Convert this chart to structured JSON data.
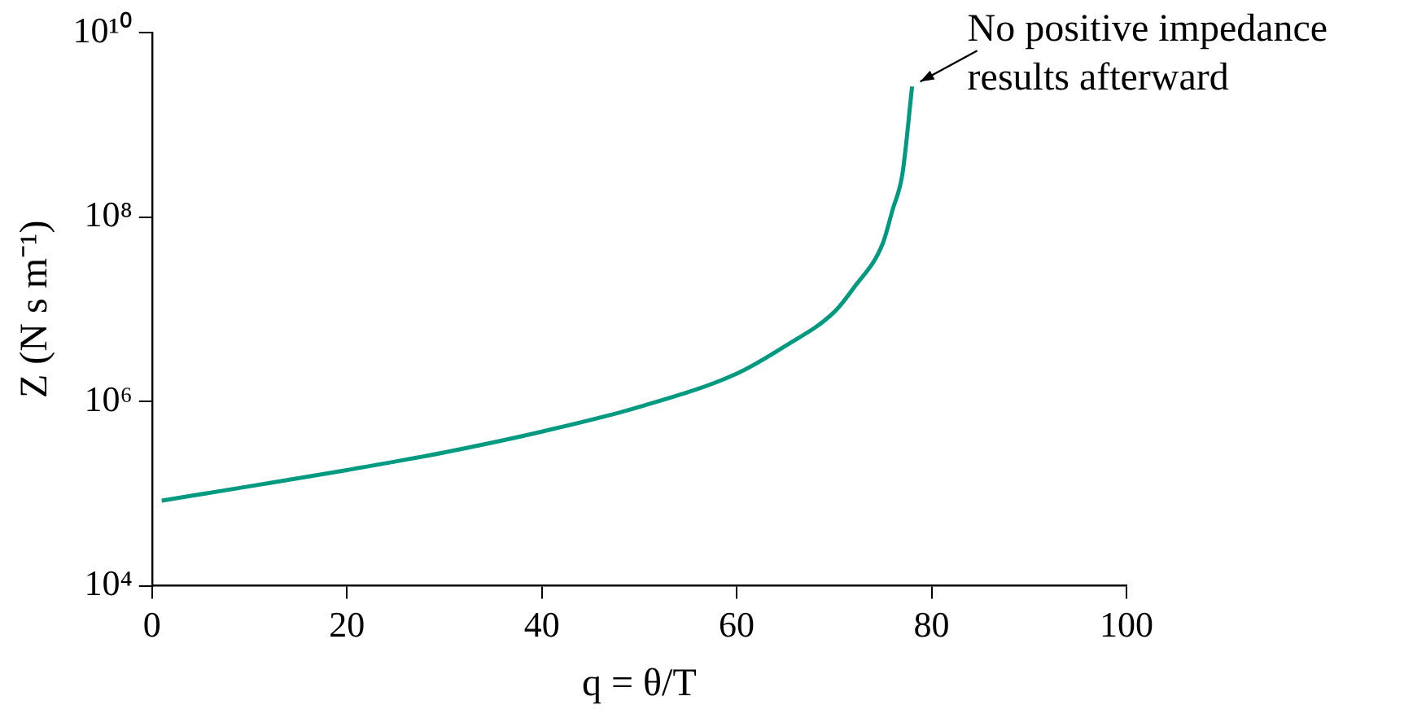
{
  "chart_data": {
    "type": "line",
    "xlabel": "q = θ/T",
    "ylabel": "Z (N s m⁻¹)",
    "x": [
      1,
      10,
      20,
      30,
      40,
      50,
      60,
      65,
      70,
      72,
      75,
      76,
      77,
      78
    ],
    "series": [
      {
        "color": "#009a80",
        "values": [
          84000,
          120000,
          180000,
          280000,
          470000,
          870000,
          2000000,
          4000000,
          9300000,
          17000000,
          52000000,
          120000000,
          290000000,
          2600000000
        ]
      }
    ],
    "xlim": [
      0,
      100
    ],
    "xticks": [
      0,
      20,
      40,
      60,
      80,
      100
    ],
    "ylim": [
      10000,
      10000000000
    ],
    "yticks": [
      {
        "value": 10000,
        "label": "10⁴"
      },
      {
        "value": 1000000,
        "label": "10⁶"
      },
      {
        "value": 100000000,
        "label": "10⁸"
      },
      {
        "value": 10000000000,
        "label": "10¹⁰"
      }
    ],
    "log": "y",
    "grid": false,
    "legend": false,
    "marker": "none",
    "line_style": "solid",
    "annotations": [
      {
        "text": "No positive impedance\nresults afterward",
        "x": 78,
        "y": 2600000000
      }
    ]
  }
}
